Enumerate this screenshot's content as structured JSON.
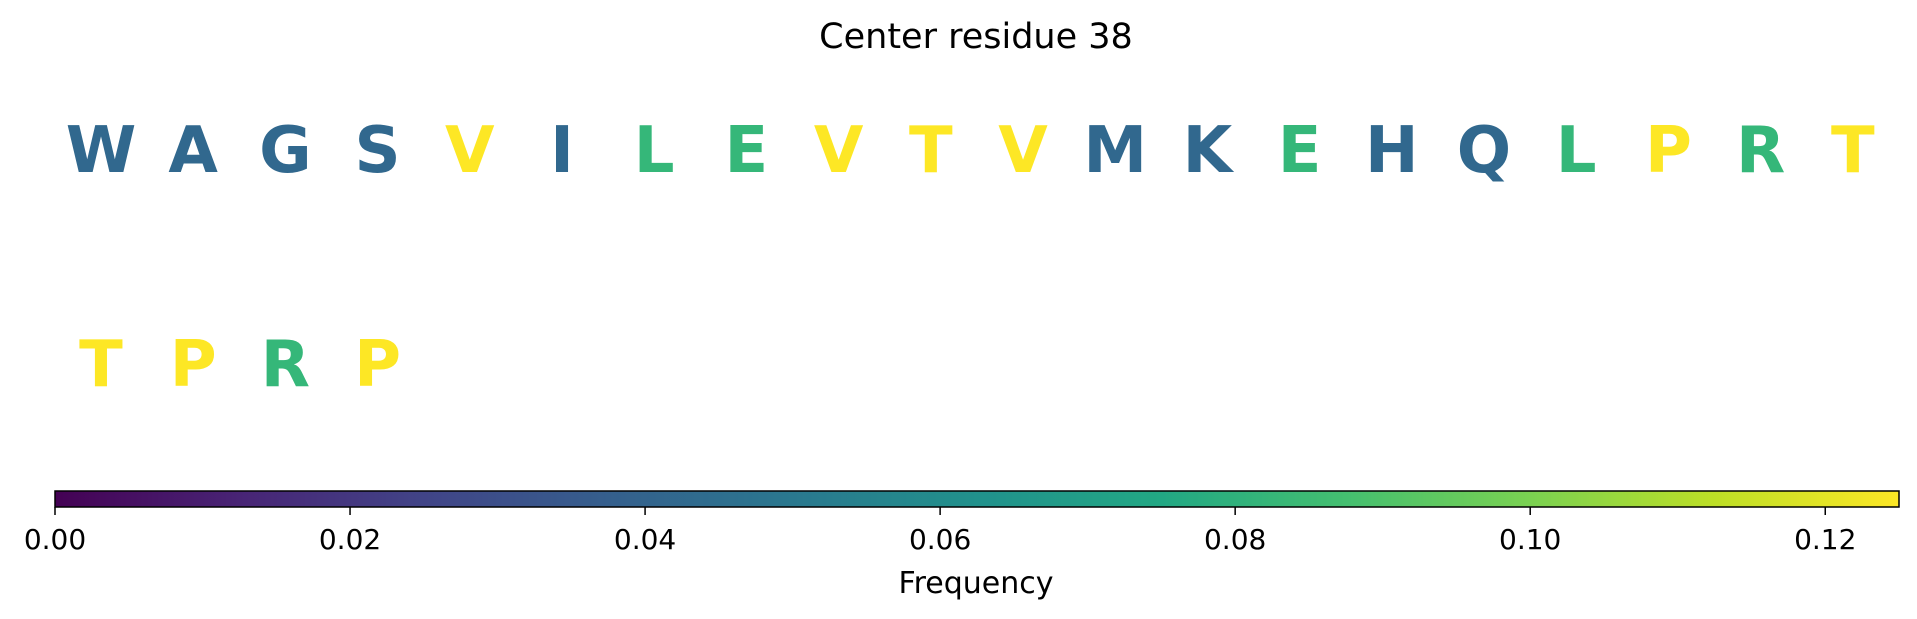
{
  "chart_data": {
    "type": "heatmap",
    "title": "Center residue 38",
    "residues": [
      {
        "letter": "W",
        "value": 0.04,
        "color": "#31688e"
      },
      {
        "letter": "A",
        "value": 0.04,
        "color": "#31688e"
      },
      {
        "letter": "G",
        "value": 0.04,
        "color": "#31688e"
      },
      {
        "letter": "S",
        "value": 0.04,
        "color": "#31688e"
      },
      {
        "letter": "V",
        "value": 0.125,
        "color": "#fde725"
      },
      {
        "letter": "I",
        "value": 0.04,
        "color": "#31688e"
      },
      {
        "letter": "L",
        "value": 0.083,
        "color": "#35b779"
      },
      {
        "letter": "E",
        "value": 0.083,
        "color": "#35b779"
      },
      {
        "letter": "V",
        "value": 0.125,
        "color": "#fde725"
      },
      {
        "letter": "T",
        "value": 0.125,
        "color": "#fde725"
      },
      {
        "letter": "V",
        "value": 0.125,
        "color": "#fde725"
      },
      {
        "letter": "M",
        "value": 0.04,
        "color": "#31688e"
      },
      {
        "letter": "K",
        "value": 0.04,
        "color": "#31688e"
      },
      {
        "letter": "E",
        "value": 0.083,
        "color": "#35b779"
      },
      {
        "letter": "H",
        "value": 0.04,
        "color": "#31688e"
      },
      {
        "letter": "Q",
        "value": 0.04,
        "color": "#31688e"
      },
      {
        "letter": "L",
        "value": 0.083,
        "color": "#35b779"
      },
      {
        "letter": "P",
        "value": 0.125,
        "color": "#fde725"
      },
      {
        "letter": "R",
        "value": 0.083,
        "color": "#35b779"
      },
      {
        "letter": "T",
        "value": 0.125,
        "color": "#fde725"
      },
      {
        "letter": "T",
        "value": 0.125,
        "color": "#fde725"
      },
      {
        "letter": "P",
        "value": 0.125,
        "color": "#fde725"
      },
      {
        "letter": "R",
        "value": 0.083,
        "color": "#35b779"
      },
      {
        "letter": "P",
        "value": 0.125,
        "color": "#fde725"
      }
    ],
    "colorbar": {
      "colormap": "viridis",
      "range": [
        0,
        0.125
      ],
      "ticks": [
        0.0,
        0.02,
        0.04,
        0.06,
        0.08,
        0.1,
        0.12
      ],
      "tick_labels": [
        "0.00",
        "0.02",
        "0.04",
        "0.06",
        "0.08",
        "0.10",
        "0.12"
      ],
      "label": "Frequency",
      "orientation": "horizontal"
    },
    "grid": false
  }
}
